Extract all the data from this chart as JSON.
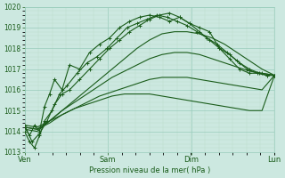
{
  "xlabel": "Pression niveau de la mer( hPa )",
  "bg_color": "#cce8e0",
  "grid_major_color": "#99ccbb",
  "grid_minor_color": "#bbddcc",
  "line_color": "#1a5c1a",
  "ylim": [
    1013,
    1020
  ],
  "yticks": [
    1013,
    1014,
    1015,
    1016,
    1017,
    1018,
    1019,
    1020
  ],
  "xtick_labels": [
    "Ven",
    "Sam",
    "Dim",
    "Lun"
  ],
  "xtick_positions": [
    0,
    0.333,
    0.667,
    1.0
  ],
  "xmax": 1.0,
  "series": [
    {
      "x": [
        0.0,
        0.02,
        0.04,
        0.06,
        0.08,
        0.1,
        0.12,
        0.15,
        0.18,
        0.22,
        0.26,
        0.3,
        0.34,
        0.38,
        0.42,
        0.46,
        0.5,
        0.54,
        0.58,
        0.62,
        0.66,
        0.7,
        0.74,
        0.78,
        0.82,
        0.86,
        0.9,
        0.95,
        1.0
      ],
      "y": [
        1014.2,
        1013.8,
        1014.3,
        1014.0,
        1015.2,
        1015.8,
        1016.5,
        1016.0,
        1017.2,
        1017.0,
        1017.8,
        1018.2,
        1018.5,
        1019.0,
        1019.3,
        1019.5,
        1019.6,
        1019.5,
        1019.3,
        1019.5,
        1019.2,
        1019.0,
        1018.8,
        1018.0,
        1017.5,
        1017.0,
        1016.8,
        1016.8,
        1016.7
      ],
      "marker": true
    },
    {
      "x": [
        0.0,
        0.02,
        0.04,
        0.06,
        0.08,
        0.11,
        0.14,
        0.17,
        0.21,
        0.25,
        0.29,
        0.33,
        0.37,
        0.41,
        0.45,
        0.49,
        0.53,
        0.57,
        0.61,
        0.65,
        0.69,
        0.73,
        0.77,
        0.81,
        0.85,
        0.89,
        0.93,
        0.97,
        1.0
      ],
      "y": [
        1014.0,
        1013.5,
        1013.2,
        1013.8,
        1014.5,
        1015.0,
        1015.8,
        1016.2,
        1016.8,
        1017.3,
        1017.6,
        1018.0,
        1018.5,
        1019.0,
        1019.2,
        1019.4,
        1019.6,
        1019.5,
        1019.3,
        1019.1,
        1018.8,
        1018.5,
        1018.2,
        1017.8,
        1017.4,
        1017.0,
        1016.8,
        1016.7,
        1016.7
      ],
      "marker": true
    },
    {
      "x": [
        0.0,
        0.03,
        0.06,
        0.09,
        0.12,
        0.15,
        0.18,
        0.22,
        0.26,
        0.3,
        0.34,
        0.38,
        0.42,
        0.46,
        0.5,
        0.54,
        0.58,
        0.62,
        0.66,
        0.7,
        0.74,
        0.78,
        0.82,
        0.86,
        0.9,
        0.94,
        0.97,
        1.0
      ],
      "y": [
        1014.3,
        1013.5,
        1013.9,
        1014.5,
        1015.3,
        1015.8,
        1016.0,
        1016.5,
        1017.0,
        1017.5,
        1018.0,
        1018.4,
        1018.8,
        1019.1,
        1019.4,
        1019.6,
        1019.7,
        1019.5,
        1019.2,
        1018.8,
        1018.4,
        1018.0,
        1017.7,
        1017.3,
        1017.0,
        1016.8,
        1016.7,
        1016.7
      ],
      "marker": true
    },
    {
      "x": [
        0.0,
        0.05,
        0.1,
        0.15,
        0.2,
        0.25,
        0.3,
        0.35,
        0.4,
        0.45,
        0.5,
        0.55,
        0.6,
        0.65,
        0.7,
        0.75,
        0.8,
        0.85,
        0.9,
        0.95,
        1.0
      ],
      "y": [
        1014.1,
        1014.0,
        1014.5,
        1015.0,
        1015.5,
        1016.0,
        1016.5,
        1017.0,
        1017.5,
        1018.0,
        1018.4,
        1018.7,
        1018.8,
        1018.8,
        1018.7,
        1018.5,
        1018.2,
        1017.8,
        1017.4,
        1017.0,
        1016.7
      ],
      "marker": false
    },
    {
      "x": [
        0.0,
        0.05,
        0.1,
        0.15,
        0.2,
        0.25,
        0.3,
        0.35,
        0.4,
        0.45,
        0.5,
        0.55,
        0.6,
        0.65,
        0.7,
        0.75,
        0.8,
        0.85,
        0.9,
        0.95,
        1.0
      ],
      "y": [
        1014.2,
        1014.1,
        1014.5,
        1015.0,
        1015.4,
        1015.8,
        1016.2,
        1016.6,
        1016.9,
        1017.2,
        1017.5,
        1017.7,
        1017.8,
        1017.8,
        1017.7,
        1017.5,
        1017.3,
        1017.1,
        1016.9,
        1016.8,
        1016.7
      ],
      "marker": false
    },
    {
      "x": [
        0.0,
        0.05,
        0.1,
        0.15,
        0.2,
        0.25,
        0.3,
        0.35,
        0.4,
        0.45,
        0.5,
        0.55,
        0.6,
        0.65,
        0.7,
        0.75,
        0.8,
        0.85,
        0.9,
        0.95,
        1.0
      ],
      "y": [
        1014.2,
        1014.1,
        1014.4,
        1014.8,
        1015.1,
        1015.4,
        1015.7,
        1015.9,
        1016.1,
        1016.3,
        1016.5,
        1016.6,
        1016.6,
        1016.6,
        1016.5,
        1016.4,
        1016.3,
        1016.2,
        1016.1,
        1016.0,
        1016.7
      ],
      "marker": false
    },
    {
      "x": [
        0.0,
        0.05,
        0.1,
        0.15,
        0.2,
        0.25,
        0.3,
        0.35,
        0.4,
        0.45,
        0.5,
        0.55,
        0.6,
        0.65,
        0.7,
        0.75,
        0.8,
        0.85,
        0.9,
        0.95,
        1.0
      ],
      "y": [
        1014.3,
        1014.2,
        1014.5,
        1014.8,
        1015.1,
        1015.3,
        1015.5,
        1015.7,
        1015.8,
        1015.8,
        1015.8,
        1015.7,
        1015.6,
        1015.5,
        1015.4,
        1015.3,
        1015.2,
        1015.1,
        1015.0,
        1015.0,
        1016.7
      ],
      "marker": false
    }
  ]
}
